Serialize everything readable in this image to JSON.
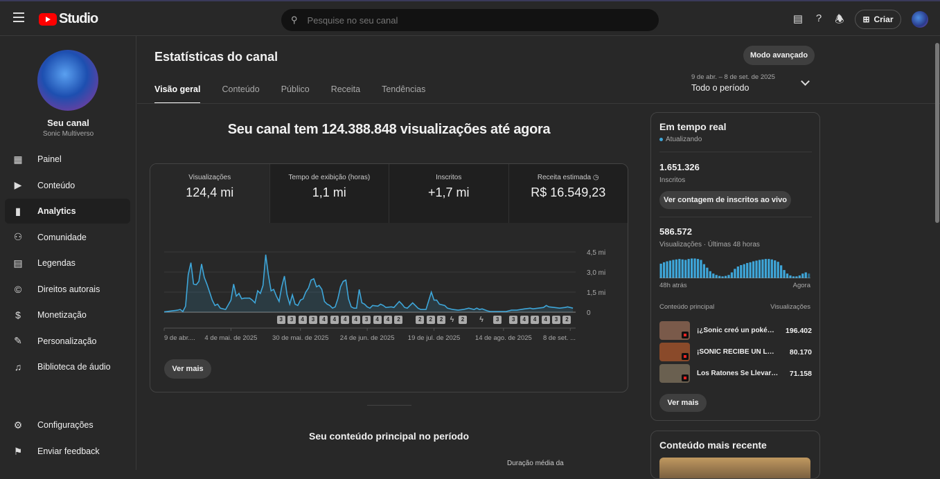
{
  "header": {
    "logo": "Studio",
    "search_placeholder": "Pesquise no seu canal",
    "create_label": "Criar"
  },
  "sidebar": {
    "channel_name": "Seu canal",
    "channel_handle": "Sonic Multiverso",
    "items": [
      {
        "label": "Painel",
        "icon": "dashboard-icon"
      },
      {
        "label": "Conteúdo",
        "icon": "content-icon"
      },
      {
        "label": "Analytics",
        "icon": "analytics-icon",
        "selected": true
      },
      {
        "label": "Comunidade",
        "icon": "community-icon"
      },
      {
        "label": "Legendas",
        "icon": "subtitles-icon"
      },
      {
        "label": "Direitos autorais",
        "icon": "copyright-icon"
      },
      {
        "label": "Monetização",
        "icon": "dollar-icon"
      },
      {
        "label": "Personalização",
        "icon": "magic-wand-icon"
      },
      {
        "label": "Biblioteca de áudio",
        "icon": "audio-library-icon"
      }
    ],
    "bottom": [
      {
        "label": "Configurações",
        "icon": "gear-icon"
      },
      {
        "label": "Enviar feedback",
        "icon": "feedback-icon"
      }
    ]
  },
  "page": {
    "title": "Estatísticas do canal",
    "advanced_mode": "Modo avançado",
    "tabs": [
      "Visão geral",
      "Conteúdo",
      "Público",
      "Receita",
      "Tendências"
    ],
    "active_tab": 0,
    "range_dates": "9 de abr. – 8 de set. de 2025",
    "range_label": "Todo o período",
    "headline": "Seu canal tem 124.388.848 visualizações até agora",
    "metrics": [
      {
        "label": "Visualizações",
        "value": "124,4 mi"
      },
      {
        "label": "Tempo de exibição (horas)",
        "value": "1,1 mi"
      },
      {
        "label": "Inscritos",
        "value": "+1,7 mi"
      },
      {
        "label": "Receita estimada",
        "value": "R$ 16.549,23"
      }
    ],
    "see_more": "Ver mais",
    "top_content_title": "Seu conteúdo principal no período",
    "avg_duration_label": "Duração média da"
  },
  "chart_data": {
    "type": "area",
    "color": "#3ea6d9",
    "ylim": [
      0,
      4.5
    ],
    "yticks": [
      {
        "v": 0,
        "label": "0"
      },
      {
        "v": 1.5,
        "label": "1,5 mi"
      },
      {
        "v": 3,
        "label": "3,0 mi"
      },
      {
        "v": 4.5,
        "label": "4,5 mi"
      }
    ],
    "xlim": [
      "2025-04-09",
      "2025-09-10"
    ],
    "xticks": [
      {
        "d": "2025-04-09",
        "label": "9 de abr...."
      },
      {
        "d": "2025-05-04",
        "label": "4 de mai. de 2025"
      },
      {
        "d": "2025-05-30",
        "label": "30 de mai. de 2025"
      },
      {
        "d": "2025-06-24",
        "label": "24 de jun. de 2025"
      },
      {
        "d": "2025-07-19",
        "label": "19 de jul. de 2025"
      },
      {
        "d": "2025-08-14",
        "label": "14 de ago. de 2025"
      },
      {
        "d": "2025-09-08",
        "label": "8 de set. ..."
      }
    ],
    "points": [
      [
        "2025-04-09",
        0.02
      ],
      [
        "2025-04-12",
        0.1
      ],
      [
        "2025-04-14",
        0.15
      ],
      [
        "2025-04-15",
        0.2
      ],
      [
        "2025-04-16",
        0.05
      ],
      [
        "2025-04-17",
        0.45
      ],
      [
        "2025-04-18",
        2.8
      ],
      [
        "2025-04-19",
        3.7
      ],
      [
        "2025-04-20",
        2.1
      ],
      [
        "2025-04-21",
        2.05
      ],
      [
        "2025-04-22",
        2.3
      ],
      [
        "2025-04-23",
        3.6
      ],
      [
        "2025-04-24",
        2.6
      ],
      [
        "2025-04-25",
        2.1
      ],
      [
        "2025-04-26",
        1.5
      ],
      [
        "2025-04-27",
        0.9
      ],
      [
        "2025-04-28",
        0.5
      ],
      [
        "2025-04-29",
        0.6
      ],
      [
        "2025-04-30",
        0.3
      ],
      [
        "2025-05-02",
        0.2
      ],
      [
        "2025-05-04",
        0.9
      ],
      [
        "2025-05-05",
        2.1
      ],
      [
        "2025-05-06",
        1.2
      ],
      [
        "2025-05-07",
        1.4
      ],
      [
        "2025-05-08",
        1.0
      ],
      [
        "2025-05-09",
        1.05
      ],
      [
        "2025-05-11",
        1.05
      ],
      [
        "2025-05-12",
        0.9
      ],
      [
        "2025-05-13",
        0.7
      ],
      [
        "2025-05-14",
        1.6
      ],
      [
        "2025-05-15",
        1.4
      ],
      [
        "2025-05-16",
        2.0
      ],
      [
        "2025-05-17",
        4.3
      ],
      [
        "2025-05-18",
        2.8
      ],
      [
        "2025-05-19",
        1.6
      ],
      [
        "2025-05-20",
        1.7
      ],
      [
        "2025-05-21",
        1.2
      ],
      [
        "2025-05-22",
        0.8
      ],
      [
        "2025-05-23",
        1.9
      ],
      [
        "2025-05-24",
        2.7
      ],
      [
        "2025-05-25",
        1.3
      ],
      [
        "2025-05-26",
        0.6
      ],
      [
        "2025-05-27",
        1.3
      ],
      [
        "2025-05-28",
        0.6
      ],
      [
        "2025-05-29",
        0.5
      ],
      [
        "2025-05-30",
        0.9
      ],
      [
        "2025-05-31",
        1.0
      ],
      [
        "2025-06-01",
        1.5
      ],
      [
        "2025-06-02",
        1.8
      ],
      [
        "2025-06-03",
        2.4
      ],
      [
        "2025-06-04",
        2.5
      ],
      [
        "2025-06-05",
        1.9
      ],
      [
        "2025-06-06",
        2.0
      ],
      [
        "2025-06-07",
        1.7
      ],
      [
        "2025-06-08",
        0.8
      ],
      [
        "2025-06-09",
        0.6
      ],
      [
        "2025-06-10",
        0.5
      ],
      [
        "2025-06-11",
        0.3
      ],
      [
        "2025-06-12",
        0.4
      ],
      [
        "2025-06-13",
        1.0
      ],
      [
        "2025-06-14",
        1.9
      ],
      [
        "2025-06-15",
        2.3
      ],
      [
        "2025-06-16",
        2.4
      ],
      [
        "2025-06-17",
        1.0
      ],
      [
        "2025-06-18",
        0.4
      ],
      [
        "2025-06-19",
        0.3
      ],
      [
        "2025-06-20",
        0.3
      ],
      [
        "2025-06-21",
        1.7
      ],
      [
        "2025-06-22",
        0.7
      ],
      [
        "2025-06-23",
        0.6
      ],
      [
        "2025-06-24",
        0.4
      ],
      [
        "2025-06-25",
        0.3
      ],
      [
        "2025-06-26",
        0.5
      ],
      [
        "2025-06-28",
        0.45
      ],
      [
        "2025-06-29",
        0.6
      ],
      [
        "2025-06-30",
        0.5
      ],
      [
        "2025-07-01",
        0.35
      ],
      [
        "2025-07-03",
        0.4
      ],
      [
        "2025-07-04",
        0.35
      ],
      [
        "2025-07-06",
        0.8
      ],
      [
        "2025-07-07",
        0.6
      ],
      [
        "2025-07-08",
        0.35
      ],
      [
        "2025-07-09",
        0.3
      ],
      [
        "2025-07-11",
        0.7
      ],
      [
        "2025-07-12",
        0.5
      ],
      [
        "2025-07-13",
        0.3
      ],
      [
        "2025-07-14",
        0.2
      ],
      [
        "2025-07-16",
        0.2
      ],
      [
        "2025-07-18",
        1.5
      ],
      [
        "2025-07-19",
        0.9
      ],
      [
        "2025-07-20",
        0.9
      ],
      [
        "2025-07-21",
        0.6
      ],
      [
        "2025-07-23",
        0.5
      ],
      [
        "2025-07-24",
        0.3
      ],
      [
        "2025-07-26",
        0.2
      ],
      [
        "2025-07-28",
        0.15
      ],
      [
        "2025-07-30",
        0.2
      ],
      [
        "2025-08-01",
        0.3
      ],
      [
        "2025-08-03",
        0.2
      ],
      [
        "2025-08-04",
        0.3
      ],
      [
        "2025-08-05",
        0.2
      ],
      [
        "2025-08-06",
        0.25
      ],
      [
        "2025-08-08",
        0.1
      ],
      [
        "2025-08-09",
        0.05
      ],
      [
        "2025-08-15",
        0.05
      ],
      [
        "2025-08-17",
        0.15
      ],
      [
        "2025-08-19",
        0.15
      ],
      [
        "2025-08-22",
        0.25
      ],
      [
        "2025-08-24",
        0.3
      ],
      [
        "2025-08-25",
        0.25
      ],
      [
        "2025-08-27",
        0.3
      ],
      [
        "2025-08-29",
        0.35
      ],
      [
        "2025-08-30",
        0.5
      ],
      [
        "2025-08-31",
        0.4
      ],
      [
        "2025-09-02",
        0.35
      ],
      [
        "2025-09-04",
        0.3
      ],
      [
        "2025-09-06",
        0.35
      ],
      [
        "2025-09-07",
        0.4
      ],
      [
        "2025-09-09",
        0.3
      ]
    ],
    "upload_markers": [
      [
        "2025-05-23",
        "3"
      ],
      [
        "2025-05-27",
        "3"
      ],
      [
        "2025-05-31",
        "4"
      ],
      [
        "2025-06-04",
        "3"
      ],
      [
        "2025-06-08",
        "4"
      ],
      [
        "2025-06-12",
        "4"
      ],
      [
        "2025-06-16",
        "4"
      ],
      [
        "2025-06-20",
        "4"
      ],
      [
        "2025-06-24",
        "3"
      ],
      [
        "2025-06-28",
        "4"
      ],
      [
        "2025-07-02",
        "4"
      ],
      [
        "2025-07-06",
        "2"
      ],
      [
        "2025-07-14",
        "2"
      ],
      [
        "2025-07-18",
        "2"
      ],
      [
        "2025-07-22",
        "2"
      ],
      [
        "2025-07-26",
        "shorts"
      ],
      [
        "2025-07-30",
        "2"
      ],
      [
        "2025-08-06",
        "shorts"
      ],
      [
        "2025-08-12",
        "3"
      ],
      [
        "2025-08-18",
        "3"
      ],
      [
        "2025-08-22",
        "4"
      ],
      [
        "2025-08-26",
        "4"
      ],
      [
        "2025-08-30",
        "4"
      ],
      [
        "2025-09-03",
        "3"
      ],
      [
        "2025-09-07",
        "2"
      ]
    ]
  },
  "realtime": {
    "title": "Em tempo real",
    "status": "Atualizando",
    "subs_value": "1.651.326",
    "subs_label": "Inscritos",
    "live_count_button": "Ver contagem de inscritos ao vivo",
    "views_value": "586.572",
    "views_label": "Visualizações · Últimas 48 horas",
    "bar_start": "48h atrás",
    "bar_end": "Agora",
    "hourly_bars": [
      0.62,
      0.68,
      0.72,
      0.75,
      0.78,
      0.8,
      0.82,
      0.8,
      0.78,
      0.82,
      0.84,
      0.84,
      0.82,
      0.78,
      0.6,
      0.45,
      0.3,
      0.2,
      0.14,
      0.1,
      0.08,
      0.1,
      0.14,
      0.25,
      0.4,
      0.5,
      0.56,
      0.6,
      0.65,
      0.68,
      0.72,
      0.75,
      0.78,
      0.8,
      0.82,
      0.82,
      0.8,
      0.76,
      0.7,
      0.55,
      0.35,
      0.2,
      0.12,
      0.08,
      0.08,
      0.12,
      0.2,
      0.25,
      0.2
    ],
    "top_header": "Conteúdo principal",
    "top_header_right": "Visualizações",
    "top": [
      {
        "title": "¡¿Sonic creó un pokémon...",
        "views": "196.402",
        "thumb": "#7a5a4a"
      },
      {
        "title": "¡SONIC RECIBE UN LÁPIZ...",
        "views": "80.170",
        "thumb": "#8a4a2a"
      },
      {
        "title": "Los Ratones Se Llevaron...",
        "views": "71.158",
        "thumb": "#6a6050"
      }
    ],
    "see_more": "Ver mais",
    "latest_title": "Conteúdo mais recente"
  }
}
